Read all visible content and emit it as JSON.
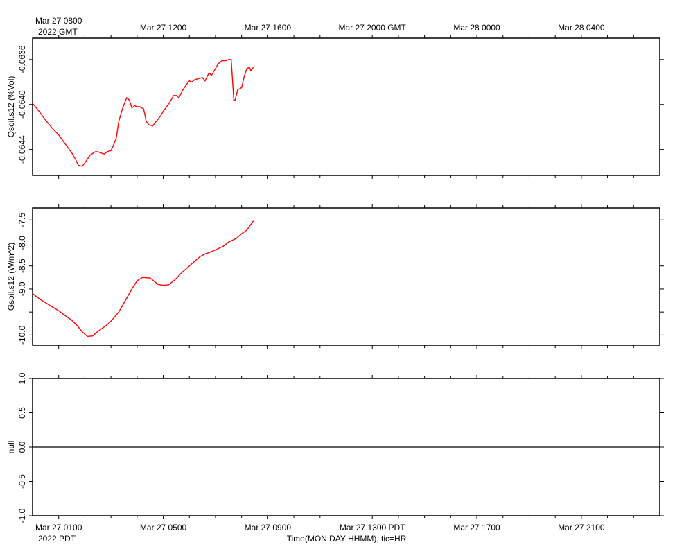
{
  "chart_data": [
    {
      "type": "line",
      "ylabel": "Qsoil.s12 (%Vol)",
      "yticks": [
        -0.0644,
        -0.064,
        -0.0636
      ],
      "ytick_labels": [
        "-0.0644",
        "-0.0640",
        "-0.0636"
      ],
      "ylim": [
        -0.06463,
        -0.06341
      ],
      "xlim_hours": [
        0,
        24
      ],
      "top_axis_labels": [
        {
          "x": 1,
          "text": "Mar 27 0800"
        },
        {
          "x": 5,
          "text": "Mar 27 1200"
        },
        {
          "x": 9,
          "text": "Mar 27 1600"
        },
        {
          "x": 13,
          "text": "Mar 27 2000 GMT"
        },
        {
          "x": 17,
          "text": "Mar 28 0000"
        },
        {
          "x": 21,
          "text": "Mar 28 0400"
        }
      ],
      "top_axis_year": "2022 GMT",
      "series": [
        {
          "color": "#ff0000",
          "x": [
            0,
            0.25,
            0.5,
            0.75,
            1,
            1.25,
            1.5,
            1.65,
            1.75,
            1.9,
            2,
            2.2,
            2.4,
            2.5,
            2.6,
            2.75,
            2.85,
            3,
            3.1,
            3.2,
            3.3,
            3.45,
            3.55,
            3.6,
            3.7,
            3.8,
            3.9,
            4,
            4.1,
            4.25,
            4.35,
            4.45,
            4.6,
            4.7,
            4.8,
            4.9,
            5,
            5.1,
            5.25,
            5.4,
            5.5,
            5.6,
            5.75,
            5.9,
            6,
            6.1,
            6.2,
            6.35,
            6.5,
            6.6,
            6.75,
            6.85,
            7,
            7.1,
            7.25,
            7.4,
            7.5,
            7.6,
            7.7,
            7.75,
            7.85,
            8,
            8.1,
            8.2,
            8.3,
            8.35,
            8.45
          ],
          "y": [
            -0.06399,
            -0.06406,
            -0.06414,
            -0.06421,
            -0.06427,
            -0.06435,
            -0.06443,
            -0.06449,
            -0.06454,
            -0.06455,
            -0.06452,
            -0.06445,
            -0.06442,
            -0.06442,
            -0.06443,
            -0.06444,
            -0.06442,
            -0.06441,
            -0.06436,
            -0.0643,
            -0.06415,
            -0.06403,
            -0.06397,
            -0.06394,
            -0.06396,
            -0.06403,
            -0.06401,
            -0.06402,
            -0.06402,
            -0.06404,
            -0.06415,
            -0.06418,
            -0.06419,
            -0.06416,
            -0.06413,
            -0.0641,
            -0.06406,
            -0.06403,
            -0.06398,
            -0.06392,
            -0.06392,
            -0.06394,
            -0.06387,
            -0.06382,
            -0.06379,
            -0.0638,
            -0.06378,
            -0.06377,
            -0.06376,
            -0.06379,
            -0.06372,
            -0.06374,
            -0.06368,
            -0.06364,
            -0.06361,
            -0.06361,
            -0.0636,
            -0.0636,
            -0.06396,
            -0.06396,
            -0.06387,
            -0.06385,
            -0.06375,
            -0.06368,
            -0.06367,
            -0.0637,
            -0.06367
          ]
        }
      ]
    },
    {
      "type": "line",
      "ylabel": "Gsoil.s12 (W/m^2)",
      "yticks": [
        -10.0,
        -9.5,
        -9.0,
        -8.5,
        -8.0,
        -7.5
      ],
      "ytick_labels": [
        "-10.0",
        "",
        "-9.0",
        "-8.5",
        "-8.0",
        "-7.5"
      ],
      "ylim": [
        -10.22,
        -7.24
      ],
      "xlim_hours": [
        0,
        24
      ],
      "series": [
        {
          "color": "#ff0000",
          "x": [
            0,
            0.3,
            0.5,
            0.7,
            1,
            1.2,
            1.5,
            1.7,
            1.9,
            2.1,
            2.3,
            2.5,
            2.6,
            2.8,
            3,
            3.3,
            3.5,
            3.8,
            4,
            4.2,
            4.5,
            4.8,
            5,
            5.2,
            5.4,
            5.5,
            5.7,
            5.9,
            6.2,
            6.4,
            6.6,
            6.8,
            7,
            7.3,
            7.5,
            7.8,
            8,
            8.2,
            8.45
          ],
          "y": [
            -9.1,
            -9.23,
            -9.3,
            -9.37,
            -9.47,
            -9.56,
            -9.68,
            -9.79,
            -9.93,
            -10.03,
            -10.02,
            -9.92,
            -9.88,
            -9.8,
            -9.7,
            -9.5,
            -9.3,
            -9.0,
            -8.82,
            -8.75,
            -8.76,
            -8.9,
            -8.92,
            -8.91,
            -8.82,
            -8.77,
            -8.65,
            -8.55,
            -8.4,
            -8.3,
            -8.24,
            -8.2,
            -8.15,
            -8.07,
            -7.98,
            -7.9,
            -7.8,
            -7.72,
            -7.52
          ]
        }
      ]
    },
    {
      "type": "line",
      "ylabel": "null",
      "yticks": [
        -1.0,
        -0.5,
        0.0,
        0.5,
        1.0
      ],
      "ytick_labels": [
        "-1.0",
        "-0.5",
        "0.0",
        "0.5",
        "1.0"
      ],
      "ylim": [
        -1.0,
        1.0
      ],
      "xlim_hours": [
        0,
        24
      ],
      "zero_line": 0.0,
      "xlabel": "Time(MON DAY HHMM), tic=HR",
      "bottom_axis_labels": [
        {
          "x": 1,
          "text": "Mar 27 0100"
        },
        {
          "x": 5,
          "text": "Mar 27 0500"
        },
        {
          "x": 9,
          "text": "Mar 27 0900"
        },
        {
          "x": 13,
          "text": "Mar 27 1300 PDT"
        },
        {
          "x": 17,
          "text": "Mar 27 1700"
        },
        {
          "x": 21,
          "text": "Mar 27 2100"
        }
      ],
      "bottom_axis_year": "2022 PDT",
      "series": []
    }
  ]
}
